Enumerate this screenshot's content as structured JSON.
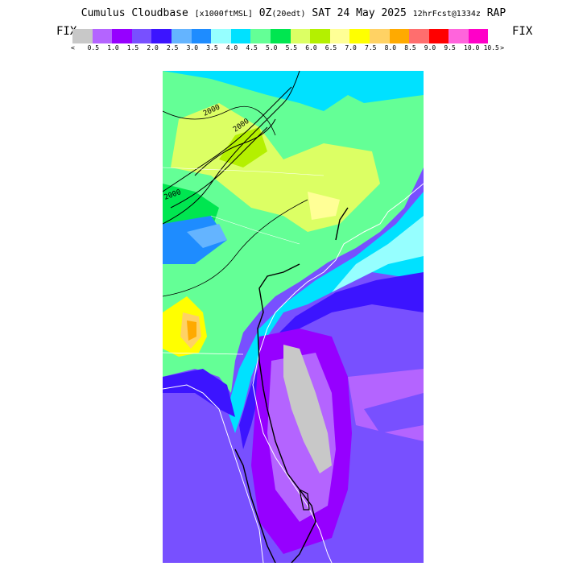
{
  "header": {
    "product": "Cumulus Cloudbase",
    "units": "[x1000ftMSL]",
    "valid": "0Z",
    "local": "(20edt)",
    "date": "SAT 24 May 2025",
    "forecast": "12hrFcst@1334z",
    "model": "RAP"
  },
  "scale_bar": {
    "fix_left": "FIX",
    "fix_right": "FIX",
    "left_arrow": "<",
    "right_arrow": ">",
    "labels": [
      "0.5",
      "1.0",
      "1.5",
      "2.0",
      "2.5",
      "3.0",
      "3.5",
      "4.0",
      "4.5",
      "5.0",
      "5.5",
      "6.0",
      "6.5",
      "7.0",
      "7.5",
      "8.0",
      "8.5",
      "9.0",
      "9.5",
      "10.0",
      "10.5"
    ],
    "colors": [
      "#c8c8c8",
      "#b464ff",
      "#9600ff",
      "#7850ff",
      "#3c14ff",
      "#64b4ff",
      "#1e8cff",
      "#96ffff",
      "#00e1ff",
      "#64ff96",
      "#00e650",
      "#dcff64",
      "#b4f000",
      "#ffff96",
      "#ffff00",
      "#ffd264",
      "#ffaa00",
      "#ff6e6e",
      "#ff0000",
      "#ff64dc",
      "#ff00c8"
    ]
  },
  "map": {
    "contour_label_1": "2000",
    "contour_label_2": "2000",
    "contour_label_3": "2000"
  }
}
